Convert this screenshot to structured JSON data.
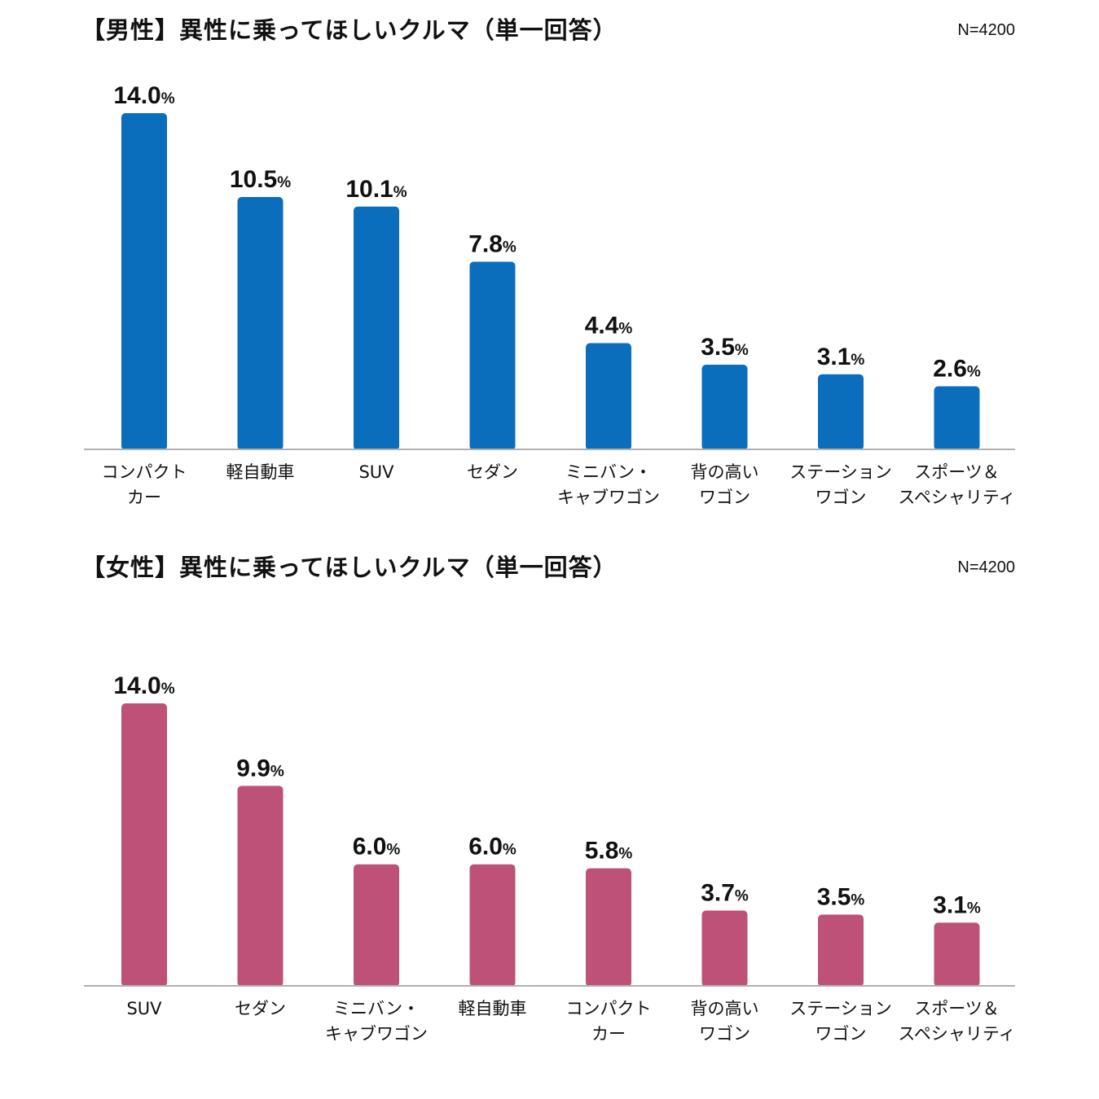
{
  "chart_data": [
    {
      "type": "bar",
      "title": "【男性】異性に乗ってほしいクルマ（単一回答）",
      "sample_size": "N=4200",
      "value_suffix": "%",
      "bar_color": "#0a6ebd",
      "axis_color": "#b0b0b0",
      "ylim": [
        0,
        14.0
      ],
      "categories": [
        [
          "コンパクト",
          "カー"
        ],
        [
          "軽自動車"
        ],
        [
          "SUV"
        ],
        [
          "セダン"
        ],
        [
          "ミニバン・",
          "キャブワゴン"
        ],
        [
          "背の高い",
          "ワゴン"
        ],
        [
          "ステーション",
          "ワゴン"
        ],
        [
          "スポーツ＆",
          "スペシャリティ"
        ]
      ],
      "values": [
        14.0,
        10.5,
        10.1,
        7.8,
        4.4,
        3.5,
        3.1,
        2.6
      ]
    },
    {
      "type": "bar",
      "title": "【女性】異性に乗ってほしいクルマ（単一回答）",
      "sample_size": "N=4200",
      "value_suffix": "%",
      "bar_color": "#bd5177",
      "axis_color": "#b0b0b0",
      "ylim": [
        0,
        14.0
      ],
      "categories": [
        [
          "SUV"
        ],
        [
          "セダン"
        ],
        [
          "ミニバン・",
          "キャブワゴン"
        ],
        [
          "軽自動車"
        ],
        [
          "コンパクト",
          "カー"
        ],
        [
          "背の高い",
          "ワゴン"
        ],
        [
          "ステーション",
          "ワゴン"
        ],
        [
          "スポーツ＆",
          "スペシャリティ"
        ]
      ],
      "values": [
        14.0,
        9.9,
        6.0,
        6.0,
        5.8,
        3.7,
        3.5,
        3.1
      ]
    }
  ]
}
